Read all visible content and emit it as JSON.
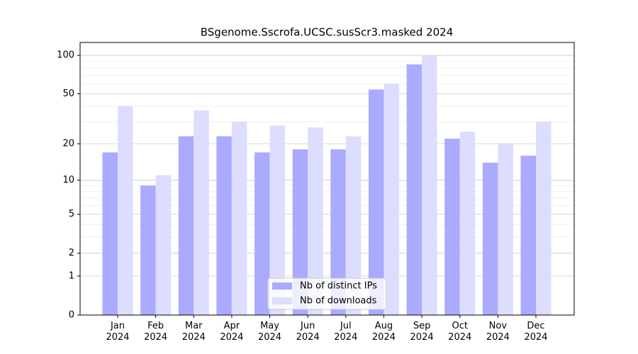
{
  "chart_data": {
    "type": "bar",
    "title": "BSgenome.Sscrofa.UCSC.susScr3.masked 2024",
    "categories": [
      "Jan\n2024",
      "Feb\n2024",
      "Mar\n2024",
      "Apr\n2024",
      "May\n2024",
      "Jun\n2024",
      "Jul\n2024",
      "Aug\n2024",
      "Sep\n2024",
      "Oct\n2024",
      "Nov\n2024",
      "Dec\n2024"
    ],
    "series": [
      {
        "name": "Nb of distinct IPs",
        "color": "#aaaaff",
        "values": [
          17,
          9,
          23,
          23,
          17,
          18,
          18,
          54,
          85,
          22,
          14,
          16
        ]
      },
      {
        "name": "Nb of downloads",
        "color": "#ddddff",
        "values": [
          40,
          11,
          37,
          30,
          28,
          27,
          23,
          60,
          100,
          25,
          20,
          30
        ]
      }
    ],
    "yscale": "symlog",
    "ylim": [
      0,
      126
    ],
    "yticks": [
      0,
      1,
      2,
      5,
      10,
      20,
      50,
      100
    ],
    "minor_yticks": [
      3,
      4,
      6,
      7,
      8,
      9,
      30,
      40,
      60,
      70,
      80,
      90
    ],
    "grid": true,
    "legend": "lower center"
  }
}
